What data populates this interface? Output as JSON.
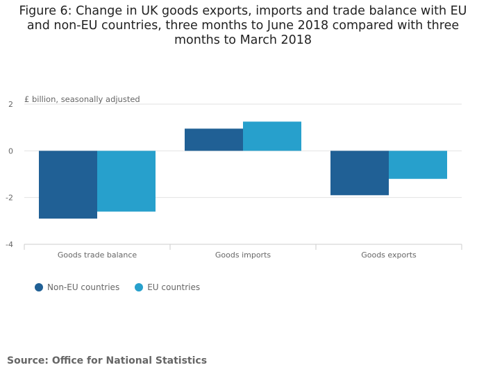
{
  "chart_data": {
    "type": "bar",
    "title": "Figure 6: Change in UK goods exports, imports and trade balance with EU and non-EU countries, three months to June 2018 compared with three months to March 2018",
    "ylabel": "£ billion, seasonally adjusted",
    "xlabel": "",
    "categories": [
      "Goods trade balance",
      "Goods imports",
      "Goods exports"
    ],
    "series": [
      {
        "name": "Non-EU countries",
        "color": "#206095",
        "values": [
          -2.9,
          0.95,
          -1.9
        ]
      },
      {
        "name": "EU countries",
        "color": "#27a0cc",
        "values": [
          -2.6,
          1.25,
          -1.2
        ]
      }
    ],
    "ylim": [
      -4,
      2
    ],
    "yticks": [
      2,
      0,
      -2,
      -4
    ],
    "grid": true,
    "legend": "bottom-left"
  },
  "source": "Source: Office for National Statistics"
}
